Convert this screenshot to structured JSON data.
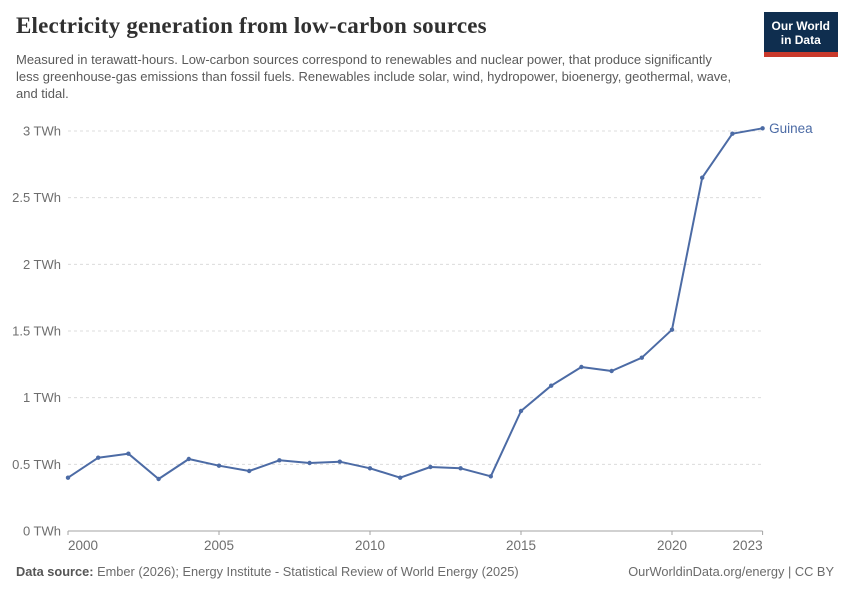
{
  "header": {
    "title": "Electricity generation from low-carbon sources",
    "subtitle": "Measured in terawatt-hours. Low-carbon sources correspond to renewables and nuclear power, that produce significantly less greenhouse-gas emissions than fossil fuels. Renewables include solar, wind, hydropower, bioenergy, geothermal, wave, and tidal.",
    "logo": {
      "line1": "Our World",
      "line2": "in Data",
      "bg_color": "#0f2e4f",
      "stripe_color": "#c9392b"
    }
  },
  "chart_data": {
    "type": "line",
    "title": "Electricity generation from low-carbon sources",
    "unit": "TWh",
    "entity": "Guinea",
    "x": [
      2000,
      2001,
      2002,
      2003,
      2004,
      2005,
      2006,
      2007,
      2008,
      2009,
      2010,
      2011,
      2012,
      2013,
      2014,
      2015,
      2016,
      2017,
      2018,
      2019,
      2020,
      2021,
      2022,
      2023
    ],
    "series": [
      {
        "name": "Guinea",
        "color": "#4c6ba5",
        "values": [
          0.4,
          0.55,
          0.58,
          0.39,
          0.54,
          0.49,
          0.45,
          0.53,
          0.51,
          0.52,
          0.47,
          0.4,
          0.48,
          0.47,
          0.41,
          0.9,
          1.09,
          1.23,
          1.2,
          1.3,
          1.51,
          2.65,
          2.98,
          3.02
        ]
      }
    ],
    "xlim": [
      2000,
      2023
    ],
    "ylim": [
      0,
      3
    ],
    "grid": true,
    "legend_position": "end-of-line",
    "y_ticks": [
      {
        "v": 0,
        "label": "0 TWh"
      },
      {
        "v": 0.5,
        "label": "0.5 TWh"
      },
      {
        "v": 1,
        "label": "1 TWh"
      },
      {
        "v": 1.5,
        "label": "1.5 TWh"
      },
      {
        "v": 2,
        "label": "2 TWh"
      },
      {
        "v": 2.5,
        "label": "2.5 TWh"
      },
      {
        "v": 3,
        "label": "3 TWh"
      }
    ],
    "x_ticks": [
      2000,
      2005,
      2010,
      2015,
      2020,
      2023
    ],
    "colors": {
      "grid": "#dcdcdc",
      "axis": "#a3a3a3",
      "tick_label": "#6e6e6e"
    }
  },
  "footer": {
    "source_label": "Data source:",
    "source_text": "Ember (2026); Energy Institute - Statistical Review of World Energy (2025)",
    "right_text": "OurWorldinData.org/energy | CC BY"
  }
}
